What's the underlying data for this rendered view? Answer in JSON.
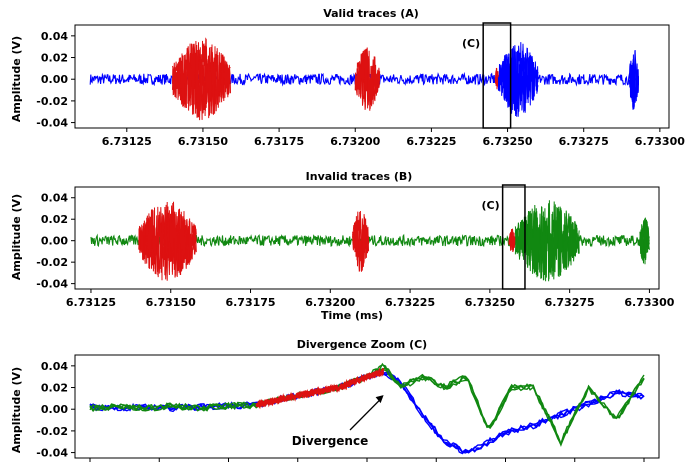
{
  "chart_data": [
    {
      "type": "line",
      "title": "Valid traces (A)",
      "xlabel": "",
      "ylabel": "Amplitude (V)",
      "xlim": [
        6.73108,
        6.73303
      ],
      "ylim": [
        -0.045,
        0.05
      ],
      "x_ticks": [
        "6.73125",
        "6.73150",
        "6.73175",
        "6.73200",
        "6.73225",
        "6.73250",
        "6.73275",
        "6.73300"
      ],
      "y_ticks": [
        "0.04",
        "0.02",
        "0.00",
        "-0.02",
        "-0.04"
      ],
      "trace_start": 6.73113,
      "trace_end": 6.73293,
      "main_color": "#0000ff",
      "highlight_color": "#dd1111",
      "bursts": [
        {
          "start": 6.7314,
          "end": 6.73159,
          "amp": 0.038,
          "color": "#dd1111"
        },
        {
          "start": 6.732,
          "end": 6.73208,
          "amp": 0.03,
          "color": "#dd1111"
        },
        {
          "start": 6.73246,
          "end": 6.73247,
          "amp": 0.012,
          "color": "#dd1111"
        },
        {
          "start": 6.73247,
          "end": 6.7326,
          "amp": 0.035,
          "color": "#0000ff"
        },
        {
          "start": 6.7329,
          "end": 6.73293,
          "amp": 0.03,
          "color": "#0000ff"
        }
      ],
      "zoom_box": {
        "label": "(C)",
        "x0": 6.73242,
        "x1": 6.73251
      }
    },
    {
      "type": "line",
      "title": "Invalid traces (B)",
      "xlabel": "Time (ms)",
      "ylabel": "Amplitude (V)",
      "xlim": [
        6.7312,
        6.73303
      ],
      "ylim": [
        -0.045,
        0.05
      ],
      "x_ticks": [
        "6.73125",
        "6.73150",
        "6.73175",
        "6.73200",
        "6.73225",
        "6.73250",
        "6.73275",
        "6.73300"
      ],
      "y_ticks": [
        "0.04",
        "0.02",
        "0.00",
        "-0.02",
        "-0.04"
      ],
      "trace_start": 6.73125,
      "trace_end": 6.733,
      "main_color": "#118811",
      "highlight_color": "#dd1111",
      "bursts": [
        {
          "start": 6.7314,
          "end": 6.73158,
          "amp": 0.038,
          "color": "#dd1111"
        },
        {
          "start": 6.73207,
          "end": 6.73212,
          "amp": 0.03,
          "color": "#dd1111"
        },
        {
          "start": 6.73256,
          "end": 6.73258,
          "amp": 0.012,
          "color": "#dd1111"
        },
        {
          "start": 6.73258,
          "end": 6.73278,
          "amp": 0.038,
          "color": "#118811"
        },
        {
          "start": 6.73297,
          "end": 6.733,
          "amp": 0.025,
          "color": "#118811"
        }
      ],
      "zoom_box": {
        "label": "(C)",
        "x0": 6.73254,
        "x1": 6.73261
      }
    },
    {
      "type": "line",
      "title": "Divergence Zoom (C)",
      "xlabel": "",
      "ylabel": "Amplitude (V)",
      "ylim": [
        -0.045,
        0.05
      ],
      "y_ticks": [
        "0.04",
        "0.02",
        "0.00",
        "-0.02",
        "-0.04"
      ],
      "annotation": "Divergence",
      "divergence_x": 0.53,
      "x_range": [
        0,
        1
      ],
      "series": [
        {
          "color": "#0000ff",
          "x": [
            0.0,
            0.05,
            0.1,
            0.15,
            0.2,
            0.25,
            0.3,
            0.35,
            0.4,
            0.45,
            0.5,
            0.53,
            0.56,
            0.6,
            0.64,
            0.68,
            0.72,
            0.76,
            0.8,
            0.85,
            0.9,
            0.95,
            1.0
          ],
          "y": [
            0.002,
            0.001,
            0.002,
            0.001,
            0.002,
            0.003,
            0.004,
            0.01,
            0.015,
            0.02,
            0.03,
            0.035,
            0.025,
            -0.005,
            -0.03,
            -0.04,
            -0.03,
            -0.02,
            -0.015,
            -0.005,
            0.005,
            0.015,
            0.012
          ]
        },
        {
          "color": "#118811",
          "x": [
            0.0,
            0.05,
            0.1,
            0.15,
            0.2,
            0.25,
            0.3,
            0.35,
            0.4,
            0.45,
            0.5,
            0.53,
            0.56,
            0.6,
            0.64,
            0.68,
            0.72,
            0.76,
            0.8,
            0.85,
            0.9,
            0.95,
            1.0
          ],
          "y": [
            0.001,
            0.002,
            0.001,
            0.003,
            0.001,
            0.003,
            0.004,
            0.01,
            0.015,
            0.02,
            0.03,
            0.04,
            0.02,
            0.03,
            0.02,
            0.03,
            -0.02,
            0.02,
            0.02,
            -0.03,
            0.02,
            -0.01,
            0.03
          ]
        },
        {
          "color": "#dd1111",
          "x": [
            0.3,
            0.35,
            0.4,
            0.45,
            0.5,
            0.53
          ],
          "y": [
            0.004,
            0.01,
            0.015,
            0.02,
            0.03,
            0.035
          ]
        }
      ]
    }
  ]
}
